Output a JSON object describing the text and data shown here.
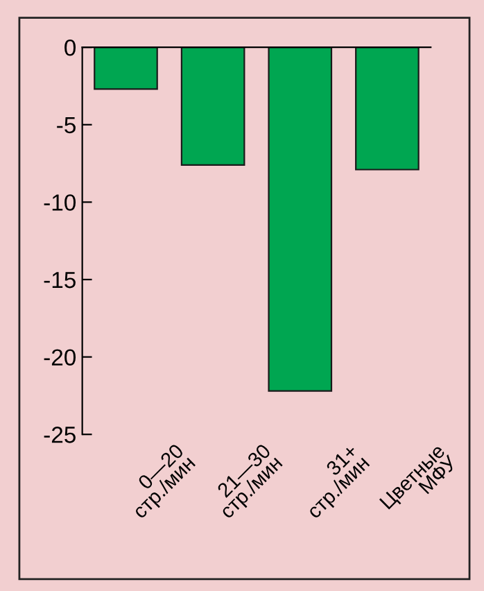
{
  "chart_data": {
    "type": "bar",
    "categories": [
      "0—20\nстр./мин",
      "21—30\nстр./мин",
      "31+\nстр./мин",
      "Цветные\nМФУ"
    ],
    "values": [
      -2.7,
      -7.6,
      -22.2,
      -7.9
    ],
    "color": "#00a651",
    "ylim": [
      -25,
      0
    ],
    "yticks": [
      0,
      -5,
      -10,
      -15,
      -20,
      -25
    ],
    "grid": false
  }
}
